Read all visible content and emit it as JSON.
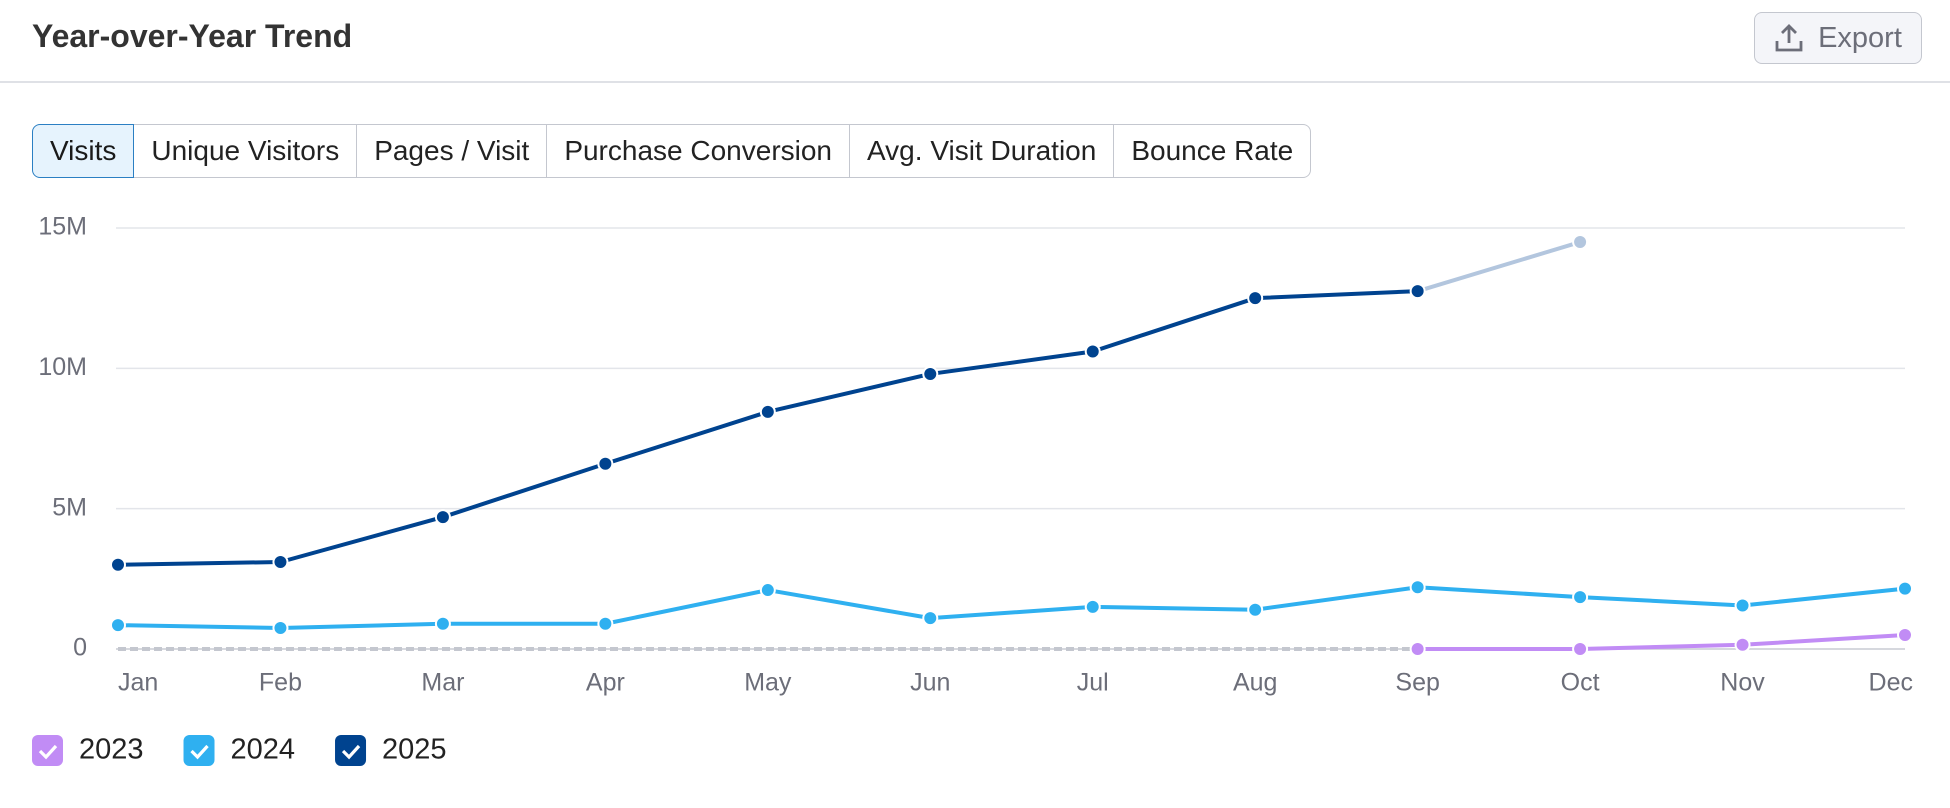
{
  "header": {
    "title": "Year-over-Year Trend",
    "export": "Export"
  },
  "tabs": [
    "Visits",
    "Unique Visitors",
    "Pages / Visit",
    "Purchase Conversion",
    "Avg. Visit Duration",
    "Bounce Rate"
  ],
  "chart_data": {
    "type": "line",
    "categories": [
      "Jan",
      "Feb",
      "Mar",
      "Apr",
      "May",
      "Jun",
      "Jul",
      "Aug",
      "Sep",
      "Oct",
      "Nov",
      "Dec"
    ],
    "series": [
      {
        "name": "2023",
        "color": "#c18cf5",
        "values": [
          null,
          null,
          null,
          null,
          null,
          null,
          null,
          null,
          0,
          0,
          150000,
          500000
        ]
      },
      {
        "name": "2024",
        "color": "#2fb0f0",
        "values": [
          850000,
          750000,
          900000,
          900000,
          2100000,
          1100000,
          1500000,
          1400000,
          2200000,
          1850000,
          1550000,
          2150000
        ]
      },
      {
        "name": "2025",
        "color": "#00438f",
        "forecast_color": "#b3c6de",
        "values": [
          3000000,
          3100000,
          4700000,
          6600000,
          8450000,
          9800000,
          10600000,
          12500000,
          12750000,
          14500000,
          null,
          null
        ]
      }
    ],
    "ylim": [
      0,
      15000000
    ],
    "yticks": [
      0,
      {
        "value": 5000000,
        "label": "5M"
      },
      {
        "value": 10000000,
        "label": "10M"
      },
      {
        "value": 15000000,
        "label": "15M"
      }
    ],
    "grid": true
  }
}
